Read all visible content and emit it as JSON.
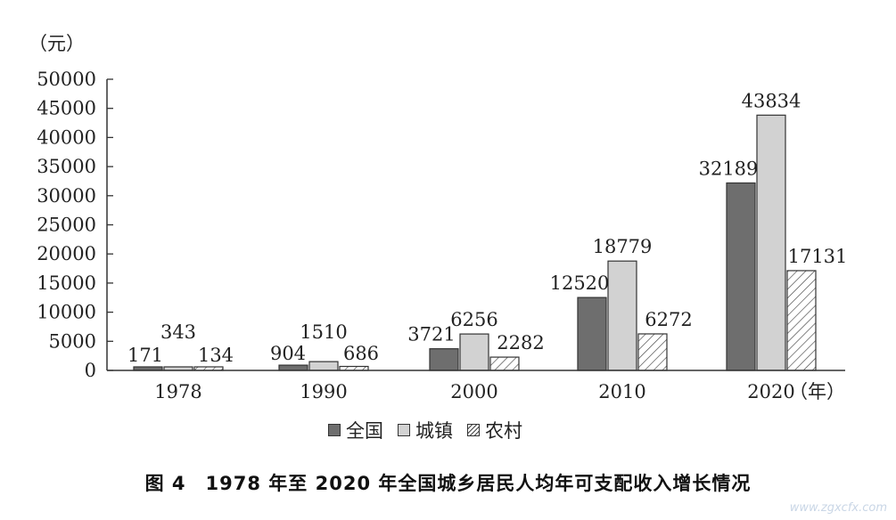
{
  "chart_data": {
    "type": "bar",
    "ylabel": "（元）",
    "xunit": "（年）",
    "categories": [
      "1978",
      "1990",
      "2000",
      "2010",
      "2020"
    ],
    "series": [
      {
        "name": "全国",
        "values": [
          171,
          904,
          3721,
          12520,
          32189
        ],
        "color": "#6e6e6e",
        "pattern": "solid-dark"
      },
      {
        "name": "城镇",
        "values": [
          343,
          1510,
          6256,
          18779,
          43834
        ],
        "color": "#d2d2d2",
        "pattern": "solid-light"
      },
      {
        "name": "农村",
        "values": [
          134,
          686,
          2282,
          6272,
          17131
        ],
        "color": "#ffffff",
        "pattern": "hatched"
      }
    ],
    "ylim": [
      0,
      50000
    ],
    "yticks": [
      0,
      5000,
      10000,
      15000,
      20000,
      25000,
      30000,
      35000,
      40000,
      45000,
      50000
    ],
    "legend_position": "bottom-center",
    "grid": false
  },
  "caption": "图 4　1978 年至 2020 年全国城乡居民人均年可支配收入增长情况",
  "watermark": "www.zgxcfx.com"
}
